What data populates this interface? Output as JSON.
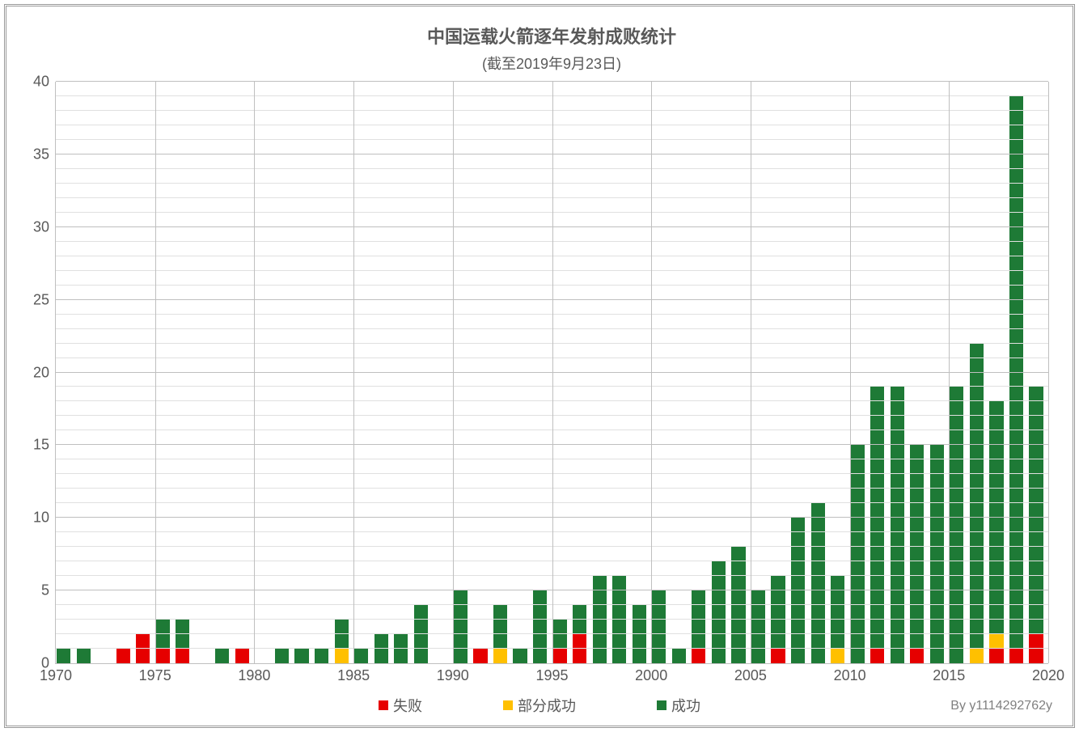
{
  "chart": {
    "type": "stacked-bar",
    "title": "中国运载火箭逐年发射成败统计",
    "subtitle": "(截至2019年9月23日)",
    "credit": "By y1114292762y",
    "background_color": "#ffffff",
    "grid_color_minor": "#e0e0e0",
    "grid_color_major": "#bfbfbf",
    "text_color": "#595959",
    "title_fontsize": 22,
    "subtitle_fontsize": 18,
    "axis_fontsize": 18,
    "yaxis": {
      "min": 0,
      "max": 40,
      "major_ticks": [
        0,
        5,
        10,
        15,
        20,
        25,
        30,
        35,
        40
      ],
      "minor_step": 1
    },
    "xaxis": {
      "min": 1970,
      "max": 2020,
      "ticks": [
        1970,
        1975,
        1980,
        1985,
        1990,
        1995,
        2000,
        2005,
        2010,
        2015,
        2020
      ]
    },
    "series": [
      {
        "key": "fail",
        "label": "失败",
        "color": "#e60000"
      },
      {
        "key": "partial",
        "label": "部分成功",
        "color": "#ffc000"
      },
      {
        "key": "success",
        "label": "成功",
        "color": "#1e7a36"
      }
    ],
    "years": [
      1970,
      1971,
      1972,
      1973,
      1974,
      1975,
      1976,
      1977,
      1978,
      1979,
      1980,
      1981,
      1982,
      1983,
      1984,
      1985,
      1986,
      1987,
      1988,
      1989,
      1990,
      1991,
      1992,
      1993,
      1994,
      1995,
      1996,
      1997,
      1998,
      1999,
      2000,
      2001,
      2002,
      2003,
      2004,
      2005,
      2006,
      2007,
      2008,
      2009,
      2010,
      2011,
      2012,
      2013,
      2014,
      2015,
      2016,
      2017,
      2018,
      2019
    ],
    "data": {
      "fail": [
        0,
        0,
        0,
        1,
        2,
        1,
        1,
        0,
        0,
        1,
        0,
        0,
        0,
        0,
        0,
        0,
        0,
        0,
        0,
        0,
        0,
        1,
        0,
        0,
        0,
        1,
        2,
        0,
        0,
        0,
        0,
        0,
        1,
        0,
        0,
        0,
        1,
        0,
        0,
        0,
        0,
        1,
        0,
        1,
        0,
        0,
        0,
        1,
        1,
        2
      ],
      "partial": [
        0,
        0,
        0,
        0,
        0,
        0,
        0,
        0,
        0,
        0,
        0,
        0,
        0,
        0,
        1,
        0,
        0,
        0,
        0,
        0,
        0,
        0,
        1,
        0,
        0,
        0,
        0,
        0,
        0,
        0,
        0,
        0,
        0,
        0,
        0,
        0,
        0,
        0,
        0,
        1,
        0,
        0,
        0,
        0,
        0,
        0,
        1,
        1,
        0,
        0
      ],
      "success": [
        1,
        1,
        0,
        0,
        0,
        2,
        2,
        0,
        1,
        0,
        0,
        1,
        1,
        1,
        2,
        1,
        2,
        2,
        4,
        0,
        5,
        0,
        3,
        1,
        5,
        2,
        2,
        6,
        6,
        4,
        5,
        1,
        4,
        7,
        8,
        5,
        5,
        10,
        11,
        5,
        15,
        18,
        19,
        14,
        15,
        19,
        21,
        16,
        38,
        17
      ]
    }
  }
}
